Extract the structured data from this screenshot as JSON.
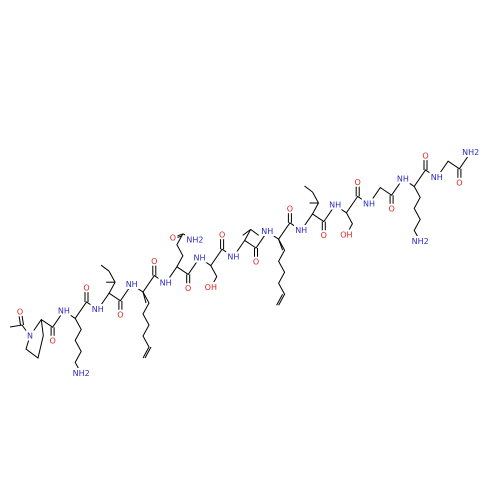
{
  "acetyl_oxygen": "O",
  "backbone_nitrogens": [
    "N",
    "NH",
    "NH",
    "NH",
    "NH",
    "NH",
    "NH",
    "NH",
    "NH",
    "NH",
    "NH",
    "NH",
    "NH",
    "NH2"
  ],
  "carbonyl_oxygens": [
    "O",
    "O",
    "O",
    "O",
    "O",
    "O",
    "O",
    "O",
    "O",
    "O",
    "O",
    "O",
    "O"
  ],
  "side_chain_labels": [
    "NH2",
    "O",
    "NH2",
    "OH",
    "OH",
    "NH2"
  ]
}
